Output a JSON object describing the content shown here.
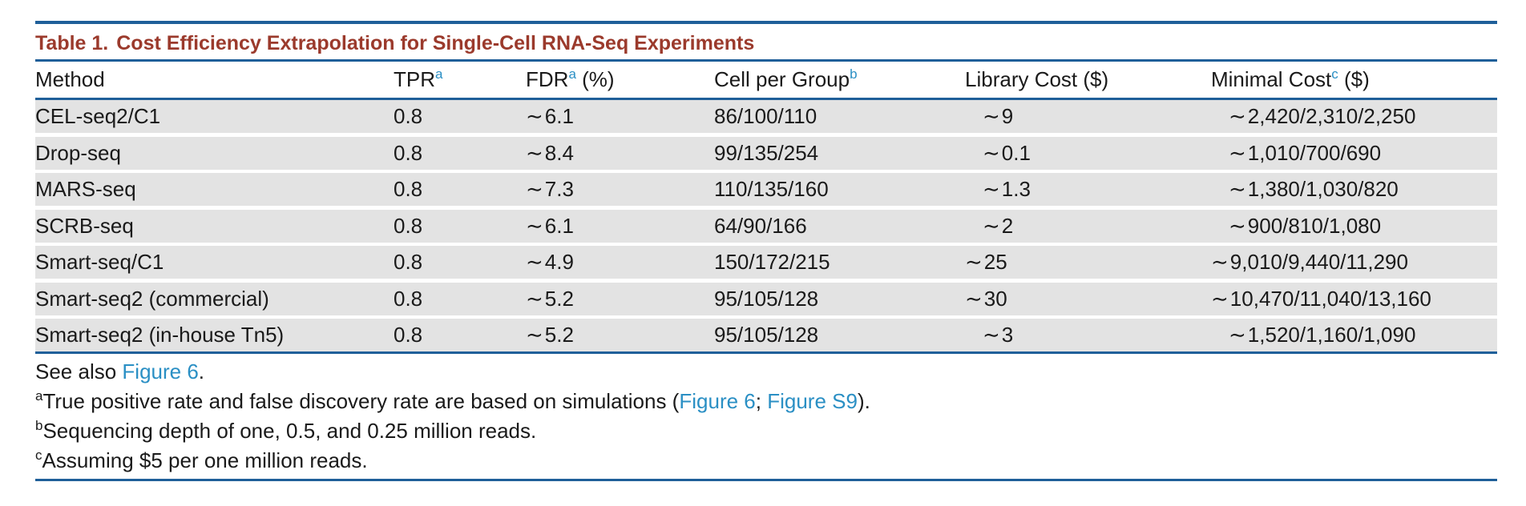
{
  "table": {
    "number": "Table 1.",
    "title": "Cost Efficiency Extrapolation for Single-Cell RNA-Seq Experiments",
    "headers": {
      "method": "Method",
      "tpr": "TPR",
      "tpr_sup": "a",
      "fdr": "FDR",
      "fdr_sup": "a",
      "fdr_unit": " (%)",
      "cells": "Cell per Group",
      "cells_sup": "b",
      "library": "Library Cost ($)",
      "minimal": "Minimal Cost",
      "minimal_sup": "c",
      "minimal_unit": " ($)"
    },
    "rows": [
      {
        "method": "CEL-seq2/C1",
        "tpr": "0.8",
        "fdr": "6.1",
        "cells": "86/100/110",
        "library": "9",
        "minimal": "2,420/2,310/2,250"
      },
      {
        "method": "Drop-seq",
        "tpr": "0.8",
        "fdr": "8.4",
        "cells": "99/135/254",
        "library": "0.1",
        "minimal": "1,010/700/690"
      },
      {
        "method": "MARS-seq",
        "tpr": "0.8",
        "fdr": "7.3",
        "cells": "110/135/160",
        "library": "1.3",
        "minimal": "1,380/1,030/820"
      },
      {
        "method": "SCRB-seq",
        "tpr": "0.8",
        "fdr": "6.1",
        "cells": "64/90/166",
        "library": "2",
        "minimal": "900/810/1,080"
      },
      {
        "method": "Smart-seq/C1",
        "tpr": "0.8",
        "fdr": "4.9",
        "cells": "150/172/215",
        "library": "25",
        "minimal": "9,010/9,440/11,290"
      },
      {
        "method": "Smart-seq2 (commercial)",
        "tpr": "0.8",
        "fdr": "5.2",
        "cells": "95/105/128",
        "library": "30",
        "minimal": "10,470/11,040/13,160"
      },
      {
        "method": "Smart-seq2 (in-house Tn5)",
        "tpr": "0.8",
        "fdr": "5.2",
        "cells": "95/105/128",
        "library": "3",
        "minimal": "1,520/1,160/1,090"
      }
    ],
    "tilde": "∼"
  },
  "notes": {
    "see_also_prefix": "See also ",
    "see_also_link": "Figure 6",
    "see_also_suffix": ".",
    "a_sup": "a",
    "a_text": "True positive rate and false discovery rate are based on simulations (",
    "a_link1": "Figure 6",
    "a_sep": "; ",
    "a_link2": "Figure S9",
    "a_end": ").",
    "b_sup": "b",
    "b_text": "Sequencing depth of one, 0.5, and 0.25 million reads.",
    "c_sup": "c",
    "c_text": "Assuming $5 per one million reads."
  }
}
